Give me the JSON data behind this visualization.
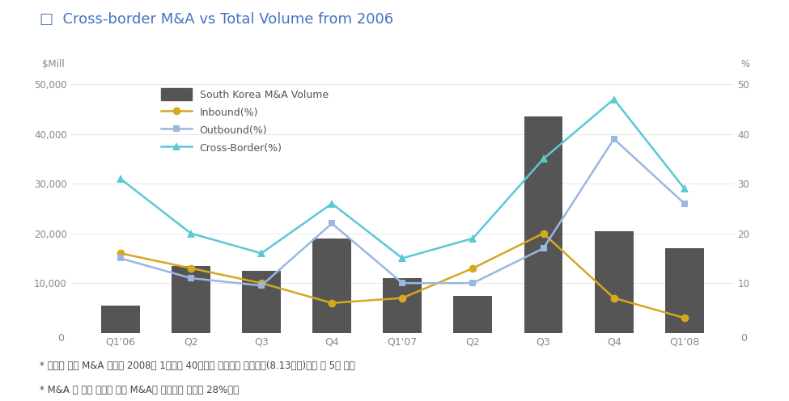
{
  "title": "Cross-border M&A vs Total Volume from 2006",
  "title_color": "#4472c4",
  "xlabel_left": "$Mill",
  "xlabel_right": "%",
  "categories": [
    "Q1'06",
    "Q2",
    "Q3",
    "Q4",
    "Q1'07",
    "Q2",
    "Q3",
    "Q4",
    "Q1'08"
  ],
  "bar_values": [
    5500,
    13500,
    12500,
    19000,
    11000,
    7500,
    43500,
    20500,
    17000
  ],
  "bar_color": "#555555",
  "inbound": [
    16,
    13,
    10,
    6,
    7,
    13,
    20,
    7,
    3
  ],
  "outbound": [
    15,
    11,
    9.5,
    22,
    10,
    10,
    17,
    39,
    26
  ],
  "crossborder": [
    31,
    20,
    16,
    26,
    15,
    19,
    35,
    47,
    29
  ],
  "inbound_color": "#d4a820",
  "outbound_color": "#9ab7e0",
  "crossborder_color": "#5bc8d4",
  "ylim_left": [
    0,
    50000
  ],
  "ylim_right": [
    0,
    50
  ],
  "yticks_left": [
    0,
    10000,
    20000,
    30000,
    40000,
    50000
  ],
  "yticks_right": [
    0,
    10,
    20,
    30,
    40,
    50
  ],
  "background_color": "#ffffff",
  "annotation1": "* 국내외 해외 M&A 규모는 2008년 1분기중 40억불을 수준으로 전년동기(8.13억불)대비 약 5배 증가",
  "annotation2": "* M&A 총 규모 중에서 해외 M&A가 차지하는 비중은 28%수준",
  "grid_color": "#e8e8e8",
  "tick_color": "#888888",
  "legend_bar_label": "South Korea M&A Volume",
  "legend_inbound_label": "Inbound(%)",
  "legend_outbound_label": "Outbound(%)",
  "legend_crossborder_label": "Cross-Border(%)"
}
